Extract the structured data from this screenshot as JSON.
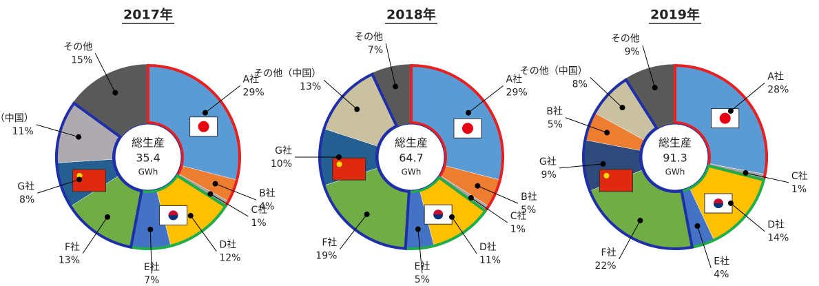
{
  "chart_data": [
    {
      "type": "donut",
      "title": "2017年",
      "center_label": "総生産",
      "total": 35.4,
      "unit": "GWh",
      "categories": [
        "A社",
        "B社",
        "C社",
        "D社",
        "E社",
        "F社",
        "G社",
        "その他（中国）",
        "その他"
      ],
      "values": [
        29,
        4,
        1,
        12,
        7,
        13,
        8,
        11,
        15
      ],
      "value_labels": [
        "29%",
        "4%",
        "1%",
        "12%",
        "7%",
        "13%",
        "8%",
        "11%",
        "15%"
      ],
      "colors": [
        "#5b9bd5",
        "#ed7d31",
        "#a5a5a5",
        "#ffc000",
        "#4472c4",
        "#70ad47",
        "#255e91",
        "#aeaab0",
        "#595959"
      ],
      "outline_colors": [
        "#e82020",
        "#e82020",
        "#e82020",
        "#1fae4a",
        "#1fae4a",
        "#1f2fa8",
        "#1f2fa8",
        "#1f2fa8",
        null
      ]
    },
    {
      "type": "donut",
      "title": "2018年",
      "center_label": "総生産",
      "total": 64.7,
      "unit": "GWh",
      "categories": [
        "A社",
        "B社",
        "C社",
        "D社",
        "E社",
        "F社",
        "G社",
        "その他（中国）",
        "その他"
      ],
      "values": [
        29,
        5,
        1,
        11,
        5,
        19,
        10,
        13,
        7
      ],
      "value_labels": [
        "29%",
        "5%",
        "1%",
        "11%",
        "5%",
        "19%",
        "10%",
        "13%",
        "7%"
      ],
      "colors": [
        "#5b9bd5",
        "#ed7d31",
        "#a5a5a5",
        "#ffc000",
        "#4472c4",
        "#70ad47",
        "#255e91",
        "#c9c1a0",
        "#595959"
      ],
      "outline_colors": [
        "#e82020",
        "#e82020",
        "#e82020",
        "#1fae4a",
        "#1fae4a",
        "#1f2fa8",
        "#1f2fa8",
        "#1f2fa8",
        null
      ]
    },
    {
      "type": "donut",
      "title": "2019年",
      "center_label": "総生産",
      "total": 91.3,
      "unit": "GWh",
      "categories": [
        "A社",
        "C社",
        "D社",
        "E社",
        "F社",
        "G社",
        "B社",
        "その他（中国）",
        "その他"
      ],
      "values": [
        28,
        1,
        14,
        4,
        22,
        9,
        5,
        8,
        9
      ],
      "value_labels": [
        "28%",
        "1%",
        "14%",
        "4%",
        "22%",
        "9%",
        "5%",
        "8%",
        "9%"
      ],
      "colors": [
        "#5b9bd5",
        "#a5a5a5",
        "#ffc000",
        "#4472c4",
        "#70ad47",
        "#2e4a7a",
        "#ed7d31",
        "#c9c1a0",
        "#595959"
      ],
      "outline_colors": [
        "#e82020",
        "#e82020",
        "#1fae4a",
        "#1fae4a",
        "#1f2fa8",
        "#1f2fa8",
        "#1f2fa8",
        "#1f2fa8",
        null
      ]
    }
  ]
}
